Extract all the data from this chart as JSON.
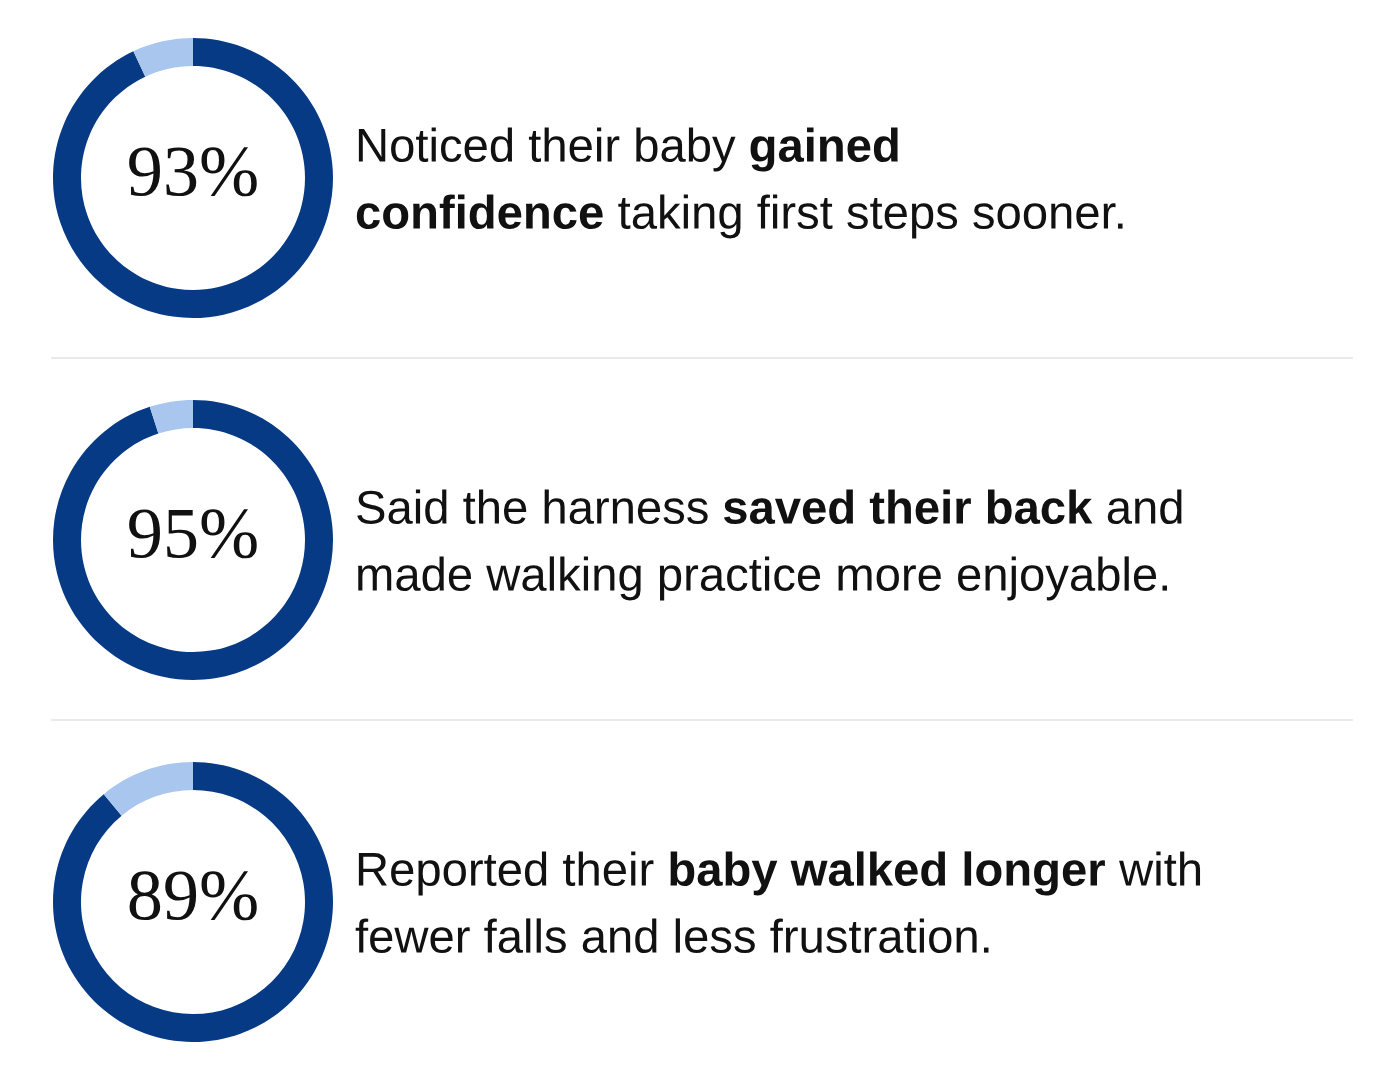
{
  "chart_data": [
    {
      "type": "donut",
      "categories": [
        null,
        null
      ],
      "values": [
        93,
        7
      ],
      "colors": [
        "#063a84",
        "#a8c6ee"
      ],
      "value_labels": [
        "93%",
        null
      ],
      "annotations": [
        "Noticed their baby ",
        "gained\nconfidence",
        " taking first steps sooner."
      ]
    },
    {
      "type": "donut",
      "categories": [
        null,
        null
      ],
      "values": [
        95,
        5
      ],
      "colors": [
        "#063a84",
        "#a8c6ee"
      ],
      "value_labels": [
        "95%",
        null
      ],
      "annotations": [
        "Said the harness ",
        "saved their back",
        " and\nmade walking practice more enjoyable."
      ]
    },
    {
      "type": "donut",
      "categories": [
        null,
        null
      ],
      "values": [
        89,
        11
      ],
      "colors": [
        "#063a84",
        "#a8c6ee"
      ],
      "value_labels": [
        "89%",
        null
      ],
      "annotations": [
        "Reported their ",
        "baby walked longer",
        " with\nfewer falls and less frustration."
      ]
    }
  ]
}
